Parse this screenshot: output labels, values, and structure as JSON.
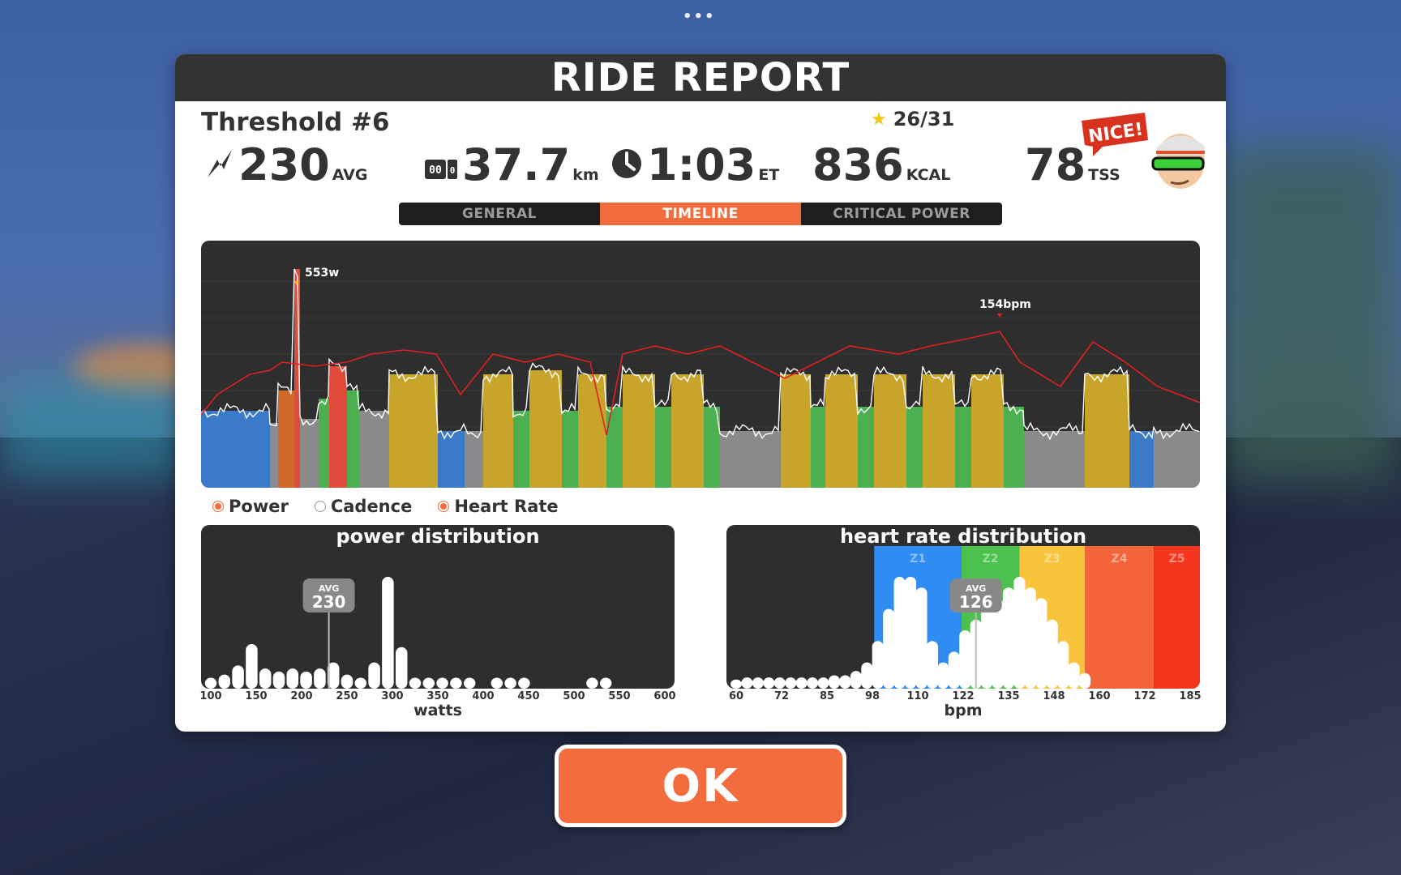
{
  "header": {
    "title": "RIDE REPORT",
    "menu_icon": "more-dots-icon"
  },
  "workout": {
    "name": "Threshold #6",
    "stars": "26/31"
  },
  "stats": [
    {
      "icon": "power-bolt-icon",
      "value": "230",
      "unit": "AVG"
    },
    {
      "icon": "odometer-icon",
      "value": "37.7",
      "unit": "km"
    },
    {
      "icon": "clock-icon",
      "value": "1:03",
      "unit": "ET"
    },
    {
      "icon": "",
      "value": "836",
      "unit": "KCAL"
    },
    {
      "icon": "",
      "value": "78",
      "unit": "TSS"
    }
  ],
  "badge": {
    "text": "NICE!"
  },
  "tabs": [
    {
      "label": "GENERAL",
      "active": false
    },
    {
      "label": "TIMELINE",
      "active": true
    },
    {
      "label": "CRITICAL POWER",
      "active": false
    }
  ],
  "timeline": {
    "power_peak_label": "553w",
    "hr_peak_label": "154bpm",
    "zone_colors": {
      "Z1": "#8a8a8a",
      "Z2": "#3b7ac9",
      "Z3": "#4caf50",
      "Z4": "#c9a42a",
      "Z5": "#d06a2a",
      "Z6": "#e14b3b"
    },
    "hr_color": "#e02020"
  },
  "legend": [
    {
      "label": "Power",
      "on": true
    },
    {
      "label": "Cadence",
      "on": false
    },
    {
      "label": "Heart Rate",
      "on": true
    }
  ],
  "power_distribution": {
    "title": "power distribution",
    "xlabel": "watts",
    "avg_label": "AVG",
    "avg_value": "230",
    "ticks": [
      "100",
      "150",
      "200",
      "250",
      "300",
      "350",
      "400",
      "450",
      "500",
      "550",
      "600"
    ]
  },
  "hr_distribution": {
    "title": "heart rate distribution",
    "xlabel": "bpm",
    "avg_label": "AVG",
    "avg_value": "126",
    "ticks": [
      "60",
      "72",
      "85",
      "98",
      "110",
      "122",
      "135",
      "148",
      "160",
      "172",
      "185"
    ],
    "zones": [
      {
        "label": "Z1",
        "color": "#2f8cf2"
      },
      {
        "label": "Z2",
        "color": "#4cc14e"
      },
      {
        "label": "Z3",
        "color": "#f9c43c"
      },
      {
        "label": "Z4",
        "color": "#f4643a"
      },
      {
        "label": "Z5",
        "color": "#f5351e"
      }
    ]
  },
  "chart_data": [
    {
      "type": "bar",
      "title": "power distribution",
      "xlabel": "watts",
      "xlim": [
        100,
        600
      ],
      "x": [
        100,
        115,
        130,
        145,
        160,
        175,
        190,
        205,
        220,
        235,
        250,
        265,
        280,
        295,
        310,
        325,
        340,
        355,
        370,
        385,
        400,
        415,
        430,
        445,
        460,
        475,
        490,
        505,
        520,
        535,
        550,
        565,
        580
      ],
      "values": [
        2,
        3,
        6,
        13,
        5,
        4,
        5,
        4,
        5,
        7,
        3,
        2,
        7,
        35,
        12,
        2,
        2,
        2,
        2,
        2,
        0,
        2,
        2,
        2,
        0,
        0,
        0,
        0,
        2,
        2,
        0,
        0,
        0
      ],
      "avg": 230
    },
    {
      "type": "bar",
      "title": "heart rate distribution",
      "xlabel": "bpm",
      "xlim": [
        60,
        185
      ],
      "x": [
        60,
        63,
        66,
        69,
        72,
        75,
        78,
        81,
        84,
        87,
        90,
        93,
        96,
        99,
        102,
        105,
        108,
        111,
        114,
        117,
        120,
        123,
        126,
        129,
        132,
        135,
        138,
        141,
        144,
        147,
        150,
        153,
        156,
        159
      ],
      "values": [
        2,
        3,
        3,
        3,
        3,
        3,
        3,
        3,
        3,
        4,
        4,
        6,
        10,
        20,
        35,
        50,
        50,
        45,
        20,
        10,
        15,
        25,
        30,
        35,
        40,
        45,
        50,
        45,
        40,
        30,
        20,
        10,
        5,
        0
      ],
      "avg": 126
    }
  ]
}
